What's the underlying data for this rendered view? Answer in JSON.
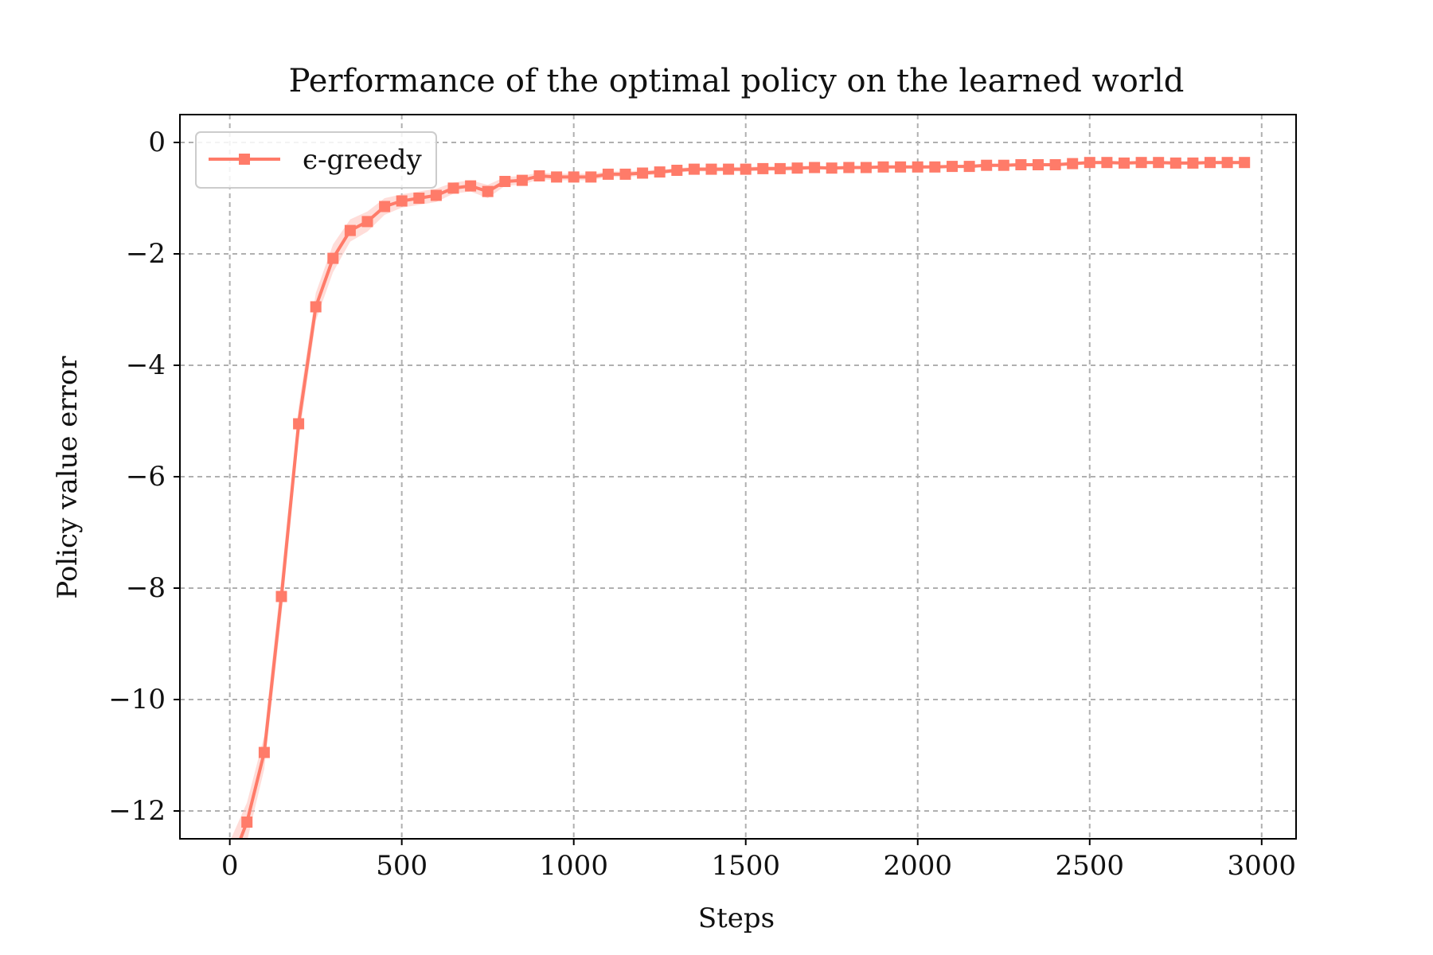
{
  "chart_data": {
    "type": "line",
    "title": "Performance of the optimal policy on the learned world",
    "xlabel": "Steps",
    "ylabel": "Policy value error",
    "xlim": [
      -145,
      3100
    ],
    "ylim": [
      -12.5,
      0.5
    ],
    "xticks": [
      0,
      500,
      1000,
      1500,
      2000,
      2500,
      3000
    ],
    "xtick_labels": [
      "0",
      "500",
      "1000",
      "1500",
      "2000",
      "2500",
      "3000"
    ],
    "yticks": [
      0,
      -2,
      -4,
      -6,
      -8,
      -10,
      -12
    ],
    "ytick_labels": [
      "0",
      "−2",
      "−4",
      "−6",
      "−8",
      "−10",
      "−12"
    ],
    "grid": true,
    "legend_position": "top-left",
    "series": [
      {
        "name": "ϵ-greedy",
        "color": "#ff7b69",
        "band_color": "#ffc7c0",
        "marker": "square",
        "x": [
          0,
          50,
          100,
          150,
          200,
          250,
          300,
          350,
          400,
          450,
          500,
          550,
          600,
          650,
          700,
          750,
          800,
          850,
          900,
          950,
          1000,
          1050,
          1100,
          1150,
          1200,
          1250,
          1300,
          1350,
          1400,
          1450,
          1500,
          1550,
          1600,
          1650,
          1700,
          1750,
          1800,
          1850,
          1900,
          1950,
          2000,
          2050,
          2100,
          2150,
          2200,
          2250,
          2300,
          2350,
          2400,
          2450,
          2500,
          2550,
          2600,
          2650,
          2700,
          2750,
          2800,
          2850,
          2900,
          2950
        ],
        "values": [
          -13.0,
          -12.2,
          -10.95,
          -8.15,
          -5.05,
          -2.95,
          -2.08,
          -1.58,
          -1.42,
          -1.15,
          -1.05,
          -1.0,
          -0.95,
          -0.82,
          -0.78,
          -0.88,
          -0.7,
          -0.68,
          -0.6,
          -0.62,
          -0.62,
          -0.62,
          -0.57,
          -0.57,
          -0.55,
          -0.53,
          -0.5,
          -0.48,
          -0.48,
          -0.48,
          -0.48,
          -0.47,
          -0.47,
          -0.46,
          -0.45,
          -0.46,
          -0.45,
          -0.45,
          -0.44,
          -0.44,
          -0.44,
          -0.44,
          -0.43,
          -0.43,
          -0.41,
          -0.41,
          -0.4,
          -0.4,
          -0.4,
          -0.38,
          -0.36,
          -0.36,
          -0.37,
          -0.36,
          -0.36,
          -0.37,
          -0.37,
          -0.36,
          -0.36,
          -0.36
        ],
        "band": [
          0.45,
          0.35,
          0.3,
          0.35,
          0.3,
          0.25,
          0.25,
          0.2,
          0.18,
          0.15,
          0.12,
          0.12,
          0.12,
          0.1,
          0.1,
          0.12,
          0.08,
          0.08,
          0.06,
          0.06,
          0.06,
          0.06,
          0.05,
          0.05,
          0.05,
          0.04,
          0.04,
          0.04,
          0.04,
          0.04,
          0.04,
          0.04,
          0.04,
          0.04,
          0.03,
          0.03,
          0.03,
          0.03,
          0.03,
          0.03,
          0.03,
          0.03,
          0.03,
          0.03,
          0.03,
          0.03,
          0.03,
          0.03,
          0.03,
          0.03,
          0.03,
          0.03,
          0.03,
          0.03,
          0.03,
          0.03,
          0.03,
          0.03,
          0.03,
          0.03
        ]
      }
    ]
  }
}
